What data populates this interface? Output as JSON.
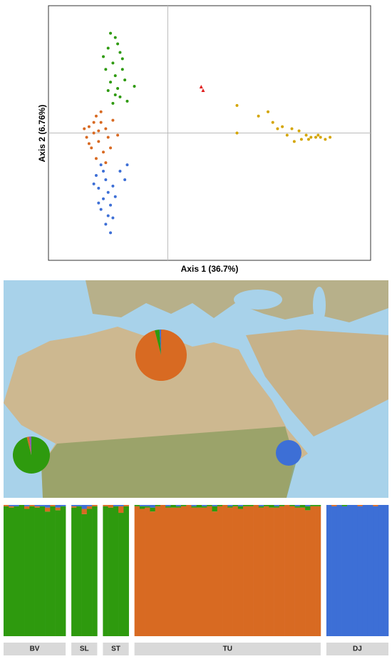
{
  "chart_data": [
    {
      "type": "scatter",
      "xlabel": "Axis 1 (36.7%)",
      "ylabel": "Axis 2 (6.76%)",
      "xlim": [
        -0.5,
        0.85
      ],
      "ylim": [
        -0.6,
        0.6
      ],
      "series": [
        {
          "color": "#2e9a0e",
          "marker": "circle",
          "x": [
            -0.22,
            -0.25,
            -0.2,
            -0.23,
            -0.26,
            -0.19,
            -0.22,
            -0.24,
            -0.18,
            -0.21,
            -0.25,
            -0.2,
            -0.23,
            -0.17,
            -0.14,
            -0.27,
            -0.21,
            -0.24,
            -0.19,
            -0.22
          ],
          "values": [
            0.45,
            0.4,
            0.38,
            0.33,
            0.3,
            0.3,
            0.27,
            0.24,
            0.25,
            0.21,
            0.2,
            0.17,
            0.14,
            0.15,
            0.22,
            0.36,
            0.42,
            0.47,
            0.35,
            0.18
          ]
        },
        {
          "color": "#d86a22",
          "marker": "circle",
          "x": [
            -0.3,
            -0.33,
            -0.28,
            -0.31,
            -0.26,
            -0.34,
            -0.29,
            -0.25,
            -0.32,
            -0.27,
            -0.23,
            -0.3,
            -0.28,
            -0.21,
            -0.33,
            -0.26,
            -0.31,
            -0.24,
            -0.29,
            -0.35
          ],
          "values": [
            0.08,
            0.03,
            0.05,
            0.0,
            0.02,
            -0.02,
            -0.04,
            -0.02,
            -0.07,
            -0.09,
            0.06,
            -0.12,
            0.1,
            -0.01,
            -0.05,
            -0.14,
            0.05,
            -0.07,
            0.01,
            0.02
          ]
        },
        {
          "color": "#3d6fd6",
          "marker": "circle",
          "x": [
            -0.28,
            -0.3,
            -0.26,
            -0.29,
            -0.25,
            -0.27,
            -0.24,
            -0.28,
            -0.25,
            -0.26,
            -0.24,
            -0.22,
            -0.31,
            -0.2,
            -0.18,
            -0.17,
            -0.27,
            -0.23,
            -0.29,
            -0.23
          ],
          "values": [
            -0.15,
            -0.2,
            -0.22,
            -0.26,
            -0.28,
            -0.31,
            -0.34,
            -0.36,
            -0.39,
            -0.43,
            -0.47,
            -0.3,
            -0.24,
            -0.18,
            -0.22,
            -0.15,
            -0.18,
            -0.25,
            -0.33,
            -0.4
          ]
        },
        {
          "color": "#d4a500",
          "marker": "circle",
          "x": [
            0.29,
            0.42,
            0.38,
            0.44,
            0.48,
            0.52,
            0.55,
            0.58,
            0.6,
            0.62,
            0.64,
            0.66,
            0.68,
            0.56,
            0.59,
            0.63,
            0.5,
            0.46,
            0.29,
            0.53
          ],
          "values": [
            0.13,
            0.1,
            0.08,
            0.05,
            0.03,
            0.02,
            0.01,
            -0.01,
            -0.02,
            -0.02,
            -0.02,
            -0.03,
            -0.02,
            -0.03,
            -0.03,
            -0.01,
            -0.01,
            0.02,
            0.0,
            -0.04
          ]
        },
        {
          "color": "#e02020",
          "marker": "triangle",
          "x": [
            0.14,
            0.148
          ],
          "values": [
            0.217,
            0.2
          ]
        }
      ]
    },
    {
      "type": "pie",
      "values": [
        96,
        3,
        1
      ],
      "colors": [
        "#d86a22",
        "#2e9a0e",
        "#3d6fd6"
      ]
    },
    {
      "type": "pie",
      "values": [
        96,
        2,
        2
      ],
      "colors": [
        "#2e9a0e",
        "#d86a22",
        "#8a5bb0"
      ]
    },
    {
      "type": "pie",
      "values": [
        100
      ],
      "colors": [
        "#3d6fd6"
      ]
    },
    {
      "type": "stacked-bar",
      "ylim": [
        0,
        1
      ],
      "groups": [
        {
          "label": "BV",
          "series": [
            {
              "color": "#2e9a0e",
              "values": [
                0.99,
                0.98,
                0.99,
                1,
                0.97,
                0.99,
                0.98,
                0.99,
                0.95,
                0.99,
                0.96,
                0.99
              ]
            },
            {
              "color": "#d86a22",
              "values": [
                0.01,
                0.01,
                0,
                0,
                0.02,
                0.01,
                0.01,
                0,
                0.03,
                0.01,
                0.02,
                0
              ]
            },
            {
              "color": "#3d6fd6",
              "values": [
                0,
                0.01,
                0.01,
                0,
                0.01,
                0,
                0.01,
                0.01,
                0.02,
                0,
                0.02,
                0.01
              ]
            }
          ]
        },
        {
          "label": "SL",
          "series": [
            {
              "color": "#2e9a0e",
              "values": [
                0.98,
                0.99,
                0.93,
                0.97,
                0.99
              ]
            },
            {
              "color": "#d86a22",
              "values": [
                0.01,
                0,
                0.04,
                0.02,
                0.01
              ]
            },
            {
              "color": "#3d6fd6",
              "values": [
                0.01,
                0.01,
                0.03,
                0.01,
                0
              ]
            }
          ]
        },
        {
          "label": "ST",
          "series": [
            {
              "color": "#2e9a0e",
              "values": [
                0.99,
                0.98,
                0.99,
                0.94,
                0.99
              ]
            },
            {
              "color": "#d86a22",
              "values": [
                0.01,
                0.02,
                0,
                0.05,
                0.01
              ]
            },
            {
              "color": "#3d6fd6",
              "values": [
                0,
                0,
                0.01,
                0.01,
                0
              ]
            }
          ]
        },
        {
          "label": "TU",
          "series": [
            {
              "color": "#d86a22",
              "values": [
                0.99,
                0.97,
                0.98,
                0.95,
                0.99,
                1,
                0.98,
                0.98,
                0.98,
                0.99,
                1,
                0.98,
                0.98,
                0.98,
                0.99,
                0.95,
                0.99,
                1,
                0.98,
                0.99,
                0.97,
                0.99,
                0.99,
                1,
                0.98,
                0.99,
                0.98,
                0.98,
                0.99,
                1,
                0.99,
                0.98,
                0.98,
                0.96,
                0.99,
                0.99
              ]
            },
            {
              "color": "#2e9a0e",
              "values": [
                0.01,
                0.02,
                0.01,
                0.03,
                0.01,
                0,
                0.01,
                0.02,
                0.01,
                0.01,
                0,
                0.01,
                0.02,
                0.01,
                0.01,
                0.04,
                0.01,
                0,
                0.01,
                0.01,
                0.02,
                0.01,
                0.01,
                0,
                0.01,
                0.01,
                0.02,
                0.01,
                0.01,
                0,
                0.01,
                0.01,
                0.02,
                0.03,
                0.01,
                0.01
              ]
            },
            {
              "color": "#3d6fd6",
              "values": [
                0,
                0.01,
                0.01,
                0.02,
                0,
                0,
                0.01,
                0,
                0.01,
                0,
                0,
                0.01,
                0,
                0.01,
                0,
                0.01,
                0,
                0,
                0.01,
                0,
                0.01,
                0,
                0,
                0,
                0.01,
                0,
                0,
                0.01,
                0,
                0,
                0,
                0.01,
                0,
                0.01,
                0,
                0
              ]
            }
          ]
        },
        {
          "label": "DJ",
          "series": [
            {
              "color": "#3d6fd6",
              "values": [
                1,
                0.99,
                1,
                0.99,
                1,
                1,
                0.99,
                1,
                1,
                0.99,
                1,
                1
              ]
            },
            {
              "color": "#d86a22",
              "values": [
                0,
                0.01,
                0,
                0,
                0,
                0,
                0.01,
                0,
                0,
                0.01,
                0,
                0
              ]
            },
            {
              "color": "#2e9a0e",
              "values": [
                0,
                0,
                0,
                0.01,
                0,
                0,
                0,
                0,
                0,
                0,
                0,
                0
              ]
            }
          ]
        }
      ]
    }
  ]
}
